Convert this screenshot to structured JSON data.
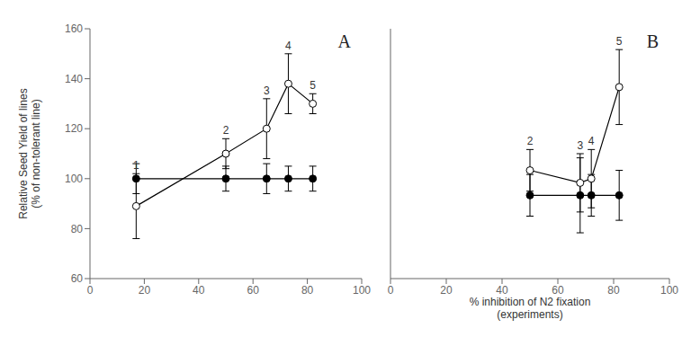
{
  "chart_data": [
    {
      "type": "line",
      "title": "A",
      "x": [
        17,
        50,
        65,
        73,
        82
      ],
      "xlim": [
        0,
        100
      ],
      "xticks": [
        0,
        20,
        40,
        60,
        80,
        100
      ],
      "ylim": [
        60,
        160
      ],
      "yticks": [
        60,
        80,
        100,
        120,
        140,
        160
      ],
      "y_label": "Relative Seed Yield of lines\n(% of non-tolerant line)",
      "grid": false,
      "tick_labels": true,
      "series": [
        {
          "color": "#000000",
          "marker": "circle",
          "values": [
            100,
            100,
            100,
            100,
            100
          ],
          "yerr": [
            6,
            5,
            6,
            5,
            5
          ]
        },
        {
          "color": "#000000",
          "marker": "open_circle",
          "values": [
            89,
            110,
            120,
            138,
            130
          ],
          "yerr": [
            13,
            6,
            12,
            12,
            4
          ],
          "point_labels": [
            "1",
            "2",
            "3",
            "4",
            "5"
          ]
        }
      ]
    },
    {
      "type": "line",
      "title": "B",
      "x": [
        50,
        68,
        72,
        82
      ],
      "xlim": [
        0,
        100
      ],
      "xticks": [
        0,
        20,
        40,
        60,
        80,
        100
      ],
      "ylim": [
        80,
        140
      ],
      "yticks": [
        80,
        100,
        120,
        140
      ],
      "x_label": "% inhibition of N2 fixation\n(experiments)",
      "grid": false,
      "tick_labels": "x",
      "series": [
        {
          "color": "#000000",
          "marker": "circle",
          "values": [
            100,
            100,
            100,
            100
          ],
          "yerr": [
            5,
            9,
            5,
            6
          ]
        },
        {
          "color": "#000000",
          "marker": "open_circle",
          "values": [
            106,
            103,
            104,
            126
          ],
          "yerr": [
            5,
            7,
            7,
            9
          ],
          "point_labels": [
            "2",
            "3",
            "4",
            "5"
          ]
        }
      ]
    }
  ]
}
